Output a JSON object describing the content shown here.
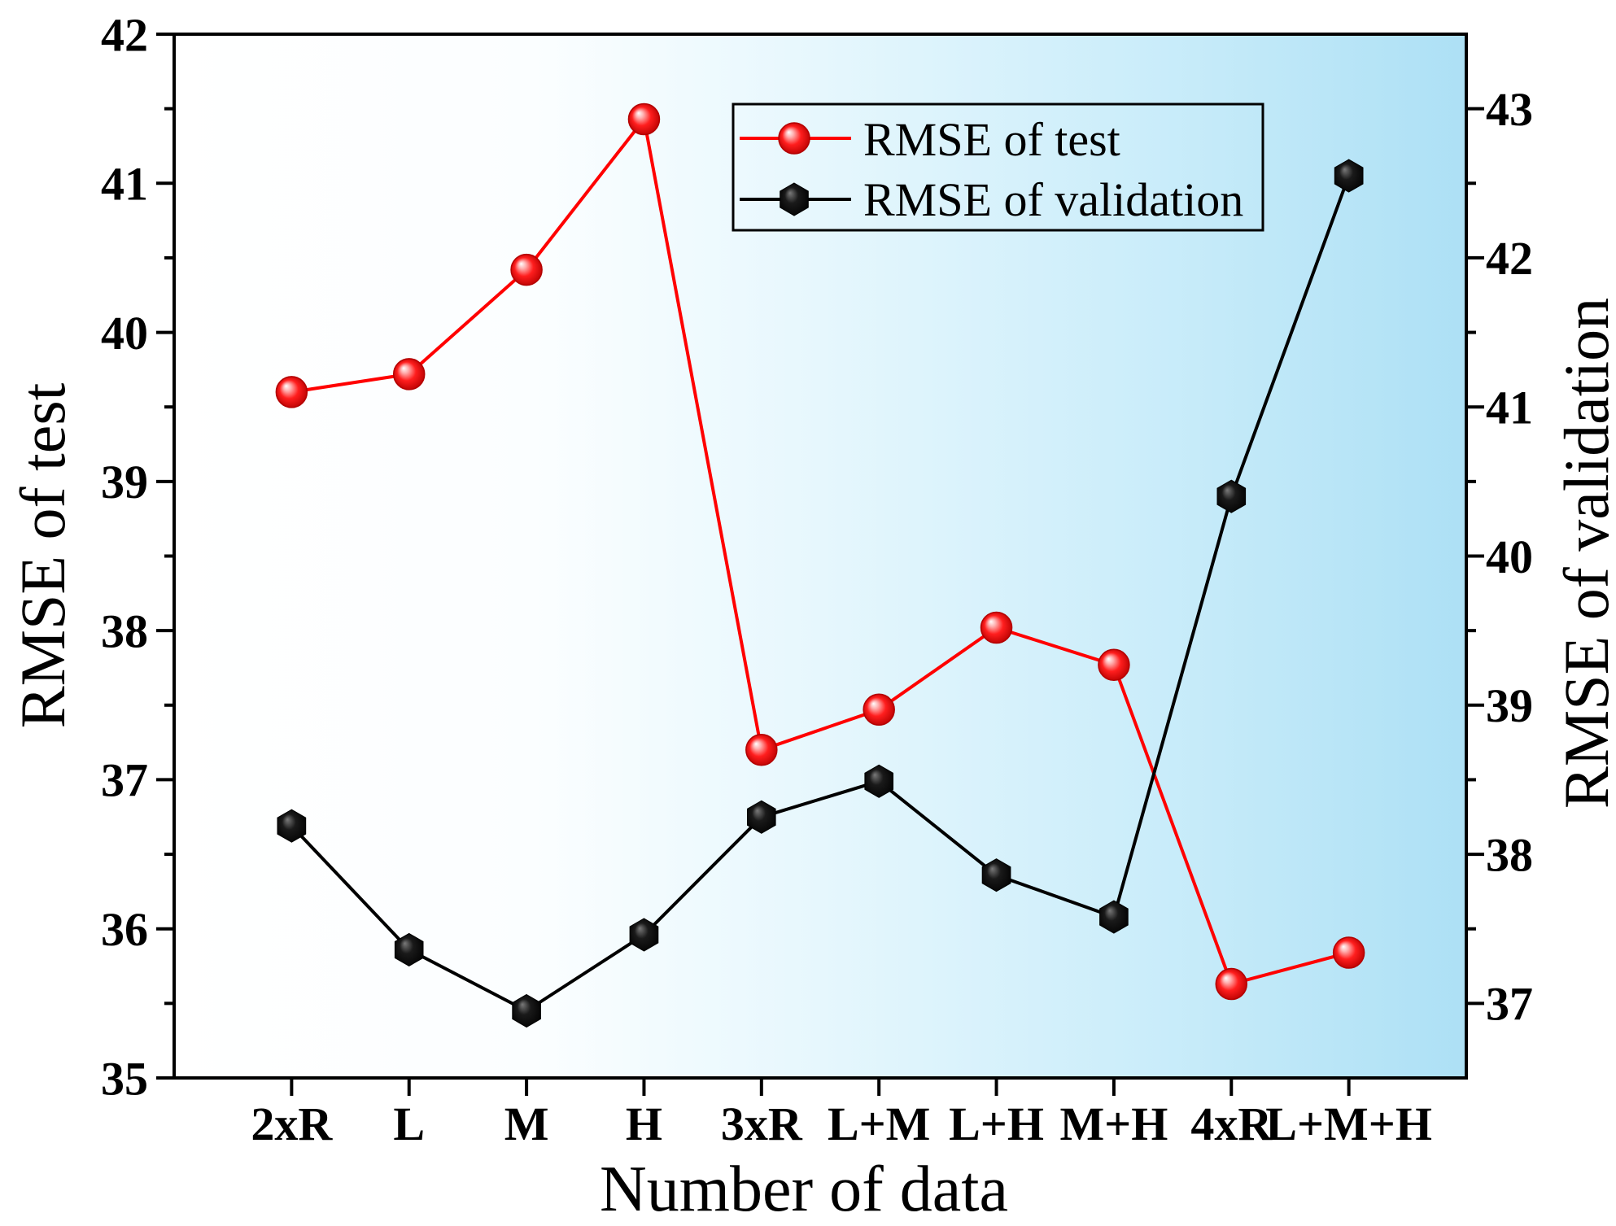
{
  "chart_data": {
    "type": "line",
    "title": "",
    "xlabel": "Number of data",
    "ylabel": "RMSE of test",
    "y2label": "RMSE of validation",
    "categories": [
      "2xR",
      "L",
      "M",
      "H",
      "3xR",
      "L+M",
      "L+H",
      "M+H",
      "4xR",
      "L+M+H"
    ],
    "ylim": [
      35,
      42
    ],
    "y2lim": [
      36.5,
      43.5
    ],
    "yticks": [
      35,
      36,
      37,
      38,
      39,
      40,
      41,
      42
    ],
    "y2ticks": [
      37,
      38,
      39,
      40,
      41,
      42,
      43
    ],
    "minor_step": 0.5,
    "grid": false,
    "legend": "top-right",
    "series": [
      {
        "name": "RMSE of test",
        "axis": "left",
        "color": "#ff0000",
        "marker": "sphere",
        "values": [
          39.6,
          39.72,
          40.42,
          41.43,
          37.2,
          37.47,
          38.02,
          37.77,
          35.63,
          35.84
        ]
      },
      {
        "name": "RMSE of validation",
        "axis": "right",
        "color": "#000000",
        "marker": "hexagon",
        "values": [
          38.19,
          37.36,
          36.95,
          37.46,
          38.25,
          38.49,
          37.86,
          37.58,
          40.4,
          42.55
        ]
      }
    ]
  }
}
